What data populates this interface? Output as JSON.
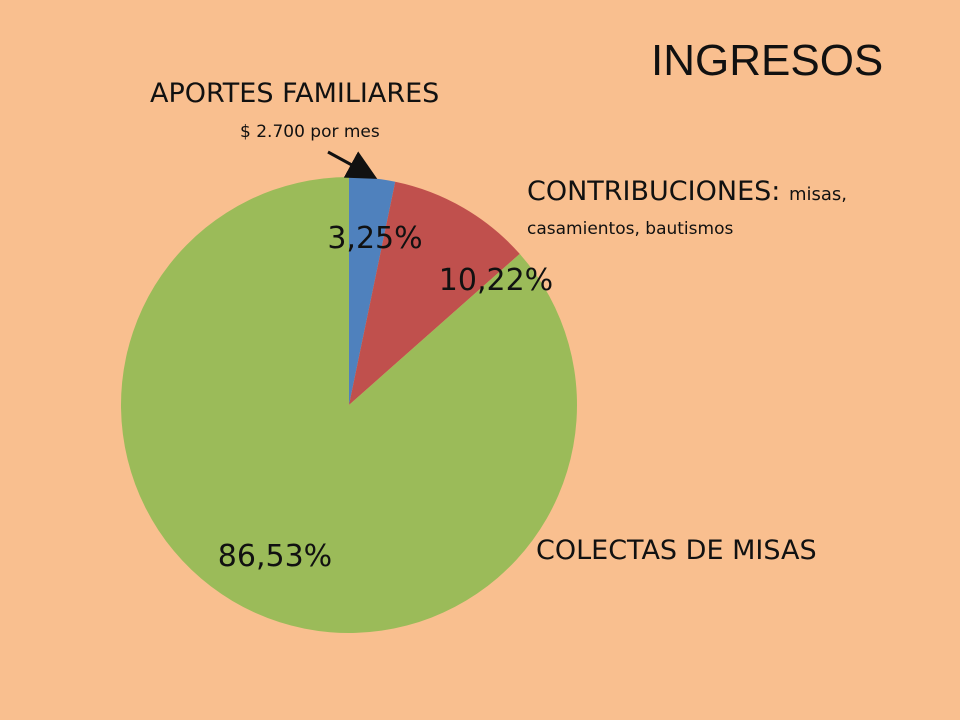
{
  "chart_data": {
    "type": "pie",
    "title": "INGRESOS",
    "categories": [
      "APORTES FAMILIARES",
      "CONTRIBUCIONES",
      "COLECTAS DE MISAS"
    ],
    "values": [
      3.25,
      10.22,
      86.53
    ],
    "value_labels": [
      "3,25%",
      "10,22%",
      "86,53%"
    ],
    "colors": [
      "#4f81bd",
      "#c0504d",
      "#9bbb59"
    ],
    "annotations": {
      "aportes_note": "$ 2.700 por mes",
      "contrib_detail_inline": "misas,",
      "contrib_detail_line2": "casamientos, bautismos"
    },
    "legend": "none"
  },
  "labels": {
    "contrib_main": "CONTRIBUCIONES:"
  }
}
